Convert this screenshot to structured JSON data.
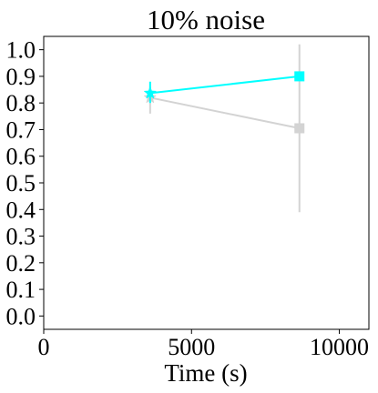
{
  "chart_data": {
    "type": "line",
    "title": "10% noise",
    "xlabel": "Time (s)",
    "ylabel": "",
    "xlim": [
      0,
      11000
    ],
    "ylim": [
      -0.05,
      1.05
    ],
    "xticks": [
      0,
      5000,
      10000
    ],
    "xtick_labels": [
      "0",
      "5000",
      "10000"
    ],
    "yticks": [
      0.0,
      0.1,
      0.2,
      0.3,
      0.4,
      0.5,
      0.6,
      0.7,
      0.8,
      0.9,
      1.0
    ],
    "ytick_labels": [
      "0.0",
      "0.1",
      "0.2",
      "0.3",
      "0.4",
      "0.5",
      "0.6",
      "0.7",
      "0.8",
      "0.9",
      "1.0"
    ],
    "grid": false,
    "legend": "none",
    "series": [
      {
        "color": "#d3d3d3",
        "x": [
          3600,
          8650
        ],
        "y": [
          0.82,
          0.705
        ],
        "yerr_low": [
          0.76,
          0.39
        ],
        "yerr_high": [
          0.86,
          1.02
        ],
        "markers": [
          "star",
          "square"
        ]
      },
      {
        "color": "#00ffff",
        "x": [
          3600,
          8650
        ],
        "y": [
          0.837,
          0.9
        ],
        "yerr_low": [
          0.8,
          0.9
        ],
        "yerr_high": [
          0.88,
          0.9
        ],
        "markers": [
          "star",
          "square"
        ]
      }
    ]
  }
}
